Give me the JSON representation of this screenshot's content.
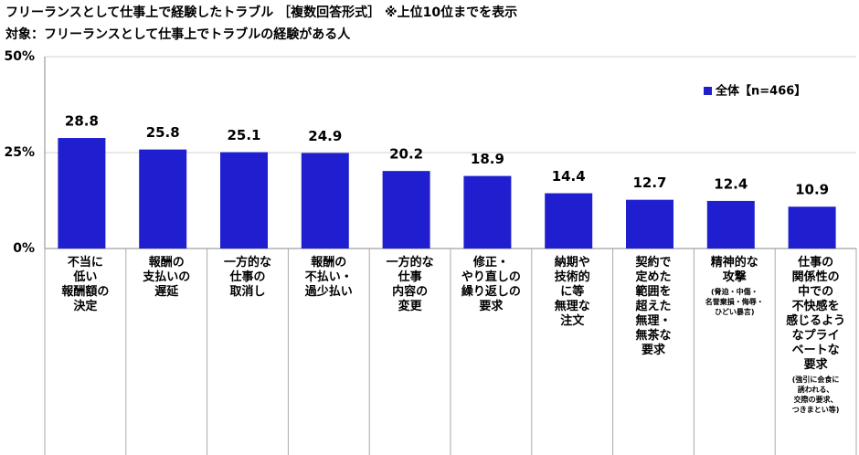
{
  "chart_data": {
    "type": "bar",
    "title": "フリーランスとして仕事上で経験したトラブル ［複数回答形式］ ※上位10位までを表示",
    "subtitle": "対象：フリーランスとして仕事上でトラブルの経験がある人",
    "categories": [
      "不当に\n低い\n報酬額の\n決定",
      "報酬の\n支払いの\n遅延",
      "一方的な\n仕事の\n取消し",
      "報酬の\n不払い・\n過少払い",
      "一方的な\n仕事\n内容の\n変更",
      "修正・\nやり直しの\n繰り返しの\n要求",
      "納期や\n技術的\nに等\n無理な\n注文",
      "契約で\n定めた\n範囲を\n超えた\n無理・\n無茶な\n要求",
      "精神的な\n攻撃",
      "仕事の\n関係性の\n中での\n不快感を\n感じるよう\nなプライ\nベートな\n要求"
    ],
    "category_notes": [
      null,
      null,
      null,
      null,
      null,
      null,
      null,
      null,
      "(脅迫・中傷・\n名誉棄損・侮辱・\nひどい暴言)",
      "(強引に会食に\n誘われる、\n交際の要求、\nつきまとい等)"
    ],
    "series": [
      {
        "name": "全体【n=466】",
        "color": "#1f1fd0",
        "values": [
          28.8,
          25.8,
          25.1,
          24.9,
          20.2,
          18.9,
          14.4,
          12.7,
          12.4,
          10.9
        ]
      }
    ],
    "ylim": [
      0,
      50
    ],
    "yticks": [
      {
        "value": 0,
        "label": "0%"
      },
      {
        "value": 25,
        "label": "25%"
      },
      {
        "value": 50,
        "label": "50%"
      }
    ],
    "grid": true
  }
}
